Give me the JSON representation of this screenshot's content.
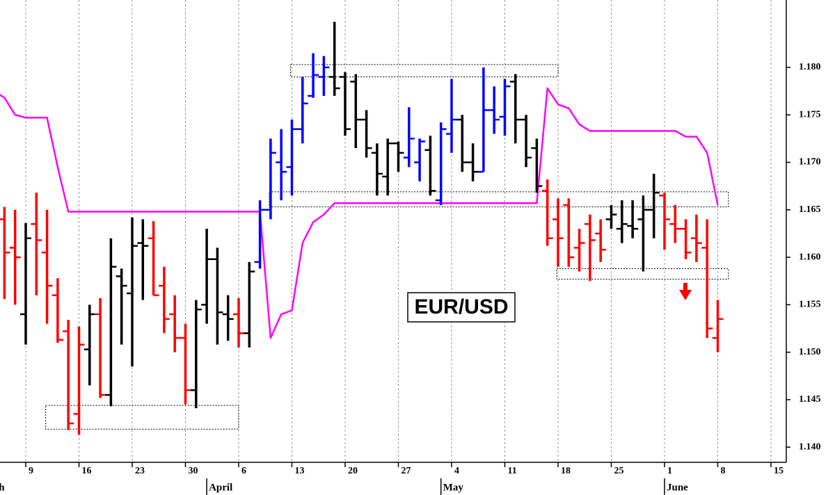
{
  "chart_data": {
    "type": "ohlc",
    "title": "EUR/USD",
    "categories": [
      null,
      null,
      null,
      null,
      null,
      "9",
      null,
      null,
      null,
      null,
      "16",
      null,
      null,
      null,
      null,
      "23",
      null,
      null,
      null,
      null,
      "30",
      null,
      null,
      null,
      null,
      "6",
      null,
      null,
      null,
      null,
      "13",
      null,
      null,
      null,
      null,
      "20",
      null,
      null,
      null,
      null,
      "27",
      null,
      null,
      null,
      null,
      "4",
      null,
      null,
      null,
      null,
      "11",
      null,
      null,
      null,
      null,
      "18",
      null,
      null,
      null,
      null,
      "25",
      null,
      null,
      null,
      null,
      "1",
      null,
      null,
      null,
      null,
      "8",
      null,
      null,
      null,
      null,
      "15"
    ],
    "months": [
      {
        "label": "March",
        "start": 0
      },
      {
        "label": "April",
        "start": 22
      },
      {
        "label": "May",
        "start": 44
      },
      {
        "label": "June",
        "start": 65
      }
    ],
    "open": [
      null,
      null,
      null,
      1.164,
      1.161,
      1.154,
      1.1635,
      1.1605,
      1.156,
      1.1522,
      1.1435,
      1.1503,
      1.154,
      1.1455,
      1.158,
      1.1562,
      1.1615,
      1.162,
      1.157,
      1.154,
      1.1515,
      1.146,
      1.155,
      1.1598,
      1.154,
      1.154,
      1.152,
      1.1595,
      1.165,
      1.17,
      1.1695,
      1.1735,
      1.177,
      1.179,
      1.179,
      1.179,
      1.1785,
      1.1745,
      1.171,
      1.1685,
      1.172,
      1.1705,
      1.17,
      1.1713,
      1.166,
      1.173,
      1.1745,
      1.17,
      1.169,
      1.1755,
      1.1748,
      1.1785,
      1.1745,
      1.1715,
      1.167,
      1.164,
      1.1655,
      1.161,
      1.1635,
      1.1625,
      1.164,
      1.163,
      1.1633,
      1.164,
      1.165,
      1.1665,
      1.1635,
      1.163,
      1.162,
      1.161,
      1.1515,
      null,
      null,
      null,
      null,
      null
    ],
    "high": [
      null,
      null,
      null,
      1.1653,
      1.165,
      1.1636,
      1.1668,
      1.165,
      1.1578,
      1.1534,
      1.1527,
      1.155,
      1.1557,
      1.162,
      1.1588,
      1.1642,
      1.164,
      1.1638,
      1.159,
      1.156,
      1.153,
      1.1555,
      1.163,
      1.161,
      1.156,
      1.1557,
      1.1595,
      1.166,
      1.1725,
      1.1735,
      1.1745,
      1.179,
      1.1815,
      1.1812,
      1.1848,
      1.1795,
      1.1793,
      1.1755,
      1.172,
      1.1725,
      1.1722,
      1.1758,
      1.1725,
      1.1728,
      1.1742,
      1.1788,
      1.175,
      1.172,
      1.18,
      1.178,
      1.1788,
      1.1793,
      1.175,
      1.1725,
      1.1682,
      1.1662,
      1.1662,
      1.163,
      1.1645,
      1.164,
      1.1655,
      1.166,
      1.166,
      1.1665,
      1.1688,
      1.1668,
      1.1655,
      1.164,
      1.1645,
      1.164,
      1.1555,
      null,
      null,
      null,
      null,
      null
    ],
    "low": [
      null,
      null,
      null,
      1.1556,
      1.155,
      1.1508,
      1.156,
      1.153,
      1.151,
      1.1418,
      1.1413,
      1.1465,
      1.1452,
      1.1443,
      1.1508,
      1.1485,
      1.1555,
      1.156,
      1.152,
      1.15,
      1.1445,
      1.1441,
      1.153,
      1.1508,
      1.1512,
      1.1505,
      1.1505,
      1.1588,
      1.164,
      1.166,
      1.1665,
      1.172,
      1.1768,
      1.177,
      1.177,
      1.1728,
      1.1715,
      1.1705,
      1.1665,
      1.1665,
      1.169,
      1.1695,
      1.168,
      1.1665,
      1.1655,
      1.171,
      1.169,
      1.168,
      1.169,
      1.173,
      1.1728,
      1.172,
      1.1695,
      1.1668,
      1.1612,
      1.159,
      1.159,
      1.1585,
      1.1575,
      1.1595,
      1.163,
      1.1615,
      1.162,
      1.1585,
      1.162,
      1.1608,
      1.1615,
      1.1598,
      1.1595,
      1.1515,
      1.15,
      null,
      null,
      null,
      null,
      null
    ],
    "close": [
      null,
      null,
      null,
      1.1605,
      1.16,
      1.162,
      1.1618,
      1.157,
      1.1513,
      1.1425,
      1.1508,
      1.154,
      1.1455,
      1.159,
      1.157,
      1.1612,
      1.1612,
      1.156,
      1.1535,
      1.1515,
      1.146,
      1.1545,
      1.1598,
      1.1542,
      1.1535,
      1.152,
      1.1585,
      1.165,
      1.171,
      1.169,
      1.1735,
      1.1762,
      1.1792,
      1.18,
      1.1778,
      1.1735,
      1.1745,
      1.1715,
      1.1688,
      1.172,
      1.171,
      1.1725,
      1.1722,
      1.167,
      1.1735,
      1.1745,
      1.17,
      1.169,
      1.1755,
      1.1745,
      1.178,
      1.1745,
      1.1705,
      1.1675,
      1.162,
      1.162,
      1.16,
      1.1615,
      1.1618,
      1.1608,
      1.1645,
      1.1635,
      1.163,
      1.165,
      1.1668,
      1.164,
      1.163,
      1.1605,
      1.1615,
      1.1525,
      1.1535,
      null,
      null,
      null,
      null,
      null
    ],
    "bar_colors": [
      null,
      null,
      null,
      "#ff0000",
      "#ff0000",
      "#000000",
      "#ff0000",
      "#ff0000",
      "#ff0000",
      "#ff0000",
      "#ff0000",
      "#000000",
      "#ff0000",
      "#000000",
      "#000000",
      "#000000",
      "#000000",
      "#ff0000",
      "#ff0000",
      "#ff0000",
      "#ff0000",
      "#000000",
      "#000000",
      "#000000",
      "#000000",
      "#ff0000",
      "#000000",
      "#0000ff",
      "#0000ff",
      "#0000ff",
      "#0000ff",
      "#0000ff",
      "#0000ff",
      "#0000ff",
      "#000000",
      "#000000",
      "#000000",
      "#000000",
      "#000000",
      "#000000",
      "#000000",
      "#0000ff",
      "#0000ff",
      "#000000",
      "#0000ff",
      "#0000ff",
      "#000000",
      "#000000",
      "#0000ff",
      "#0000ff",
      "#0000ff",
      "#000000",
      "#000000",
      "#000000",
      "#ff0000",
      "#ff0000",
      "#ff0000",
      "#ff0000",
      "#ff0000",
      "#ff0000",
      "#000000",
      "#000000",
      "#000000",
      "#000000",
      "#000000",
      "#ff0000",
      "#ff0000",
      "#ff0000",
      "#ff0000",
      "#ff0000",
      "#ff0000",
      null,
      null,
      null,
      null,
      null
    ],
    "line": {
      "color": "#ff00ff",
      "values": [
        null,
        null,
        1.1775,
        1.1768,
        1.175,
        1.1747,
        1.1747,
        1.1747,
        1.1695,
        1.1648,
        1.1648,
        1.1648,
        1.1648,
        1.1648,
        1.1648,
        1.1648,
        1.1648,
        1.1648,
        1.1648,
        1.1648,
        1.1648,
        1.1648,
        1.1648,
        1.1648,
        1.1648,
        1.1648,
        1.1648,
        1.1648,
        1.1515,
        1.154,
        1.1544,
        1.1615,
        1.1637,
        1.1645,
        1.1657,
        1.1657,
        1.1657,
        1.1657,
        1.1657,
        1.1657,
        1.1657,
        1.1657,
        1.1657,
        1.1657,
        1.1657,
        1.1657,
        1.1657,
        1.1657,
        1.1657,
        1.1657,
        1.1657,
        1.1657,
        1.1657,
        1.1657,
        1.1778,
        1.1761,
        1.1757,
        1.174,
        1.1733,
        1.1733,
        1.1733,
        1.1733,
        1.1733,
        1.1733,
        1.1733,
        1.1733,
        1.1733,
        1.1727,
        1.1727,
        1.171,
        1.1655,
        null,
        null,
        null,
        null,
        null
      ]
    },
    "boxes": [
      {
        "from": 7,
        "to": 25,
        "low": 1.1419,
        "high": 1.1444
      },
      {
        "from": 30,
        "to": 55,
        "low": 1.179,
        "high": 1.1803
      },
      {
        "from": 28,
        "to": 71,
        "low": 1.1653,
        "high": 1.1669
      },
      {
        "from": 55,
        "to": 71,
        "low": 1.1577,
        "high": 1.1588
      }
    ],
    "ylim": [
      1.1384,
      1.1871
    ],
    "yticks": [
      {
        "value": 1.14,
        "label": "1.140"
      },
      {
        "value": 1.145,
        "label": "1.145"
      },
      {
        "value": 1.15,
        "label": "1.150"
      },
      {
        "value": 1.155,
        "label": "1.155"
      },
      {
        "value": 1.16,
        "label": "1.160"
      },
      {
        "value": 1.165,
        "label": "1.165"
      },
      {
        "value": 1.17,
        "label": "1.170"
      },
      {
        "value": 1.175,
        "label": "1.175"
      },
      {
        "value": 1.18,
        "label": "1.180"
      }
    ],
    "grid": true
  }
}
